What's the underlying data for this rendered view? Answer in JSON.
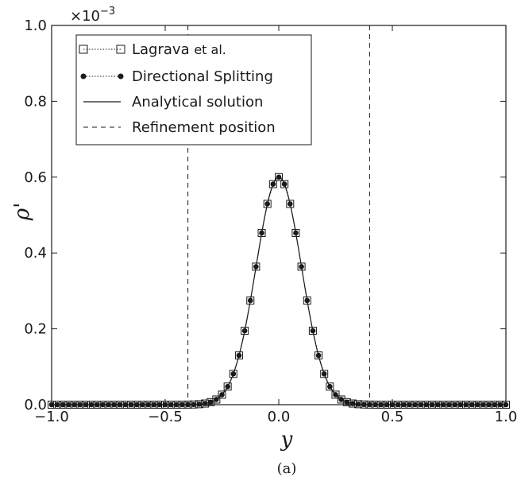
{
  "chart_data": {
    "type": "line",
    "title": "",
    "xlabel": "y",
    "ylabel": "ρ'",
    "caption": "(a)",
    "y_multiplier": "×10",
    "y_multiplier_exp": "−3",
    "xlim": [
      -1.0,
      1.0
    ],
    "ylim": [
      0.0,
      1.0
    ],
    "x_ticks": [
      -1.0,
      -0.5,
      0.0,
      0.5,
      1.0
    ],
    "x_tick_labels": [
      "−1.0",
      "−0.5",
      "0.0",
      "0.5",
      "1.0"
    ],
    "y_ticks": [
      0.0,
      0.2,
      0.4,
      0.6,
      0.8,
      1.0
    ],
    "y_tick_labels": [
      "0.0",
      "0.2",
      "0.4",
      "0.6",
      "0.8",
      "1.0"
    ],
    "grid": false,
    "legend_position": "top-left",
    "gaussian": {
      "amplitude": 0.6,
      "sigma": 0.1
    },
    "series": [
      {
        "name": "Lagrava",
        "name_suffix": "et al.",
        "style": "open-square-dotted",
        "x_range": [
          -1.0,
          1.0
        ],
        "dx": 0.025
      },
      {
        "name": "Directional Splitting",
        "style": "filled-circle-dotted",
        "x_range": [
          -1.0,
          1.0
        ],
        "dx": 0.025
      },
      {
        "name": "Analytical solution",
        "style": "solid"
      },
      {
        "name": "Refinement position",
        "style": "dashed",
        "x_values": [
          -0.4,
          0.4
        ]
      }
    ]
  }
}
